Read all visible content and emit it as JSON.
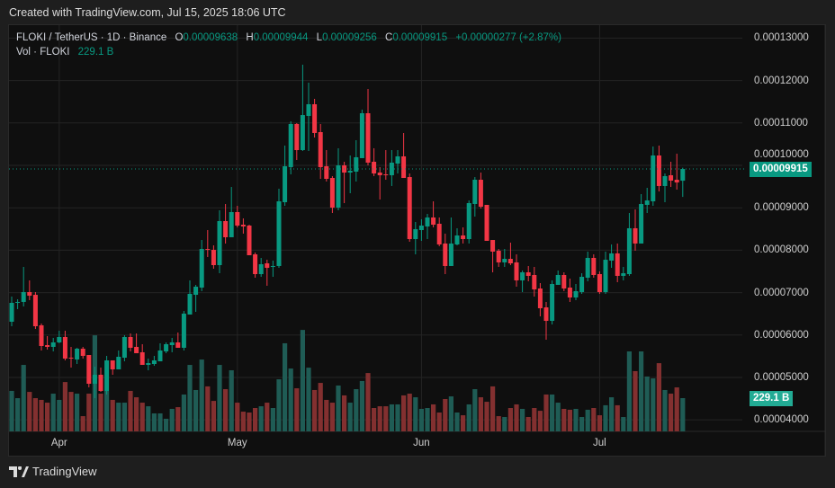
{
  "caption": "Created with TradingView.com, Jul 15, 2025 18:06 UTC",
  "legend": {
    "symbol": "FLOKI / TetherUS · 1D · Binance",
    "o_label": "O",
    "o_value": "0.00009638",
    "h_label": "H",
    "h_value": "0.00009944",
    "l_label": "L",
    "l_value": "0.00009256",
    "c_label": "C",
    "c_value": "0.00009915",
    "change": "+0.00000277 (+2.87%)",
    "vol_label": "Vol · FLOKI",
    "vol_value": "229.1 B"
  },
  "price_tag": "0.00009915",
  "volume_tag": "229.1 B",
  "logo_text": "TradingView",
  "colors": {
    "up": "#089981",
    "down": "#f23645",
    "up_volume": "#1f5c55",
    "down_volume": "#833030",
    "background": "#0f0f0f",
    "grid": "#242424"
  },
  "chart_data": {
    "type": "candlestick",
    "ylim": [
      3.728e-05,
      0.00013263
    ],
    "price_ticks": [
      "0.00013000",
      "0.00012000",
      "0.00011000",
      "0.00010000",
      "0.00009000",
      "0.00008000",
      "0.00007000",
      "0.00006000",
      "0.00005000",
      "0.00004000"
    ],
    "x_ticks": [
      {
        "label": "Apr",
        "date": "2025-04-01"
      },
      {
        "label": "May",
        "date": "2025-05-01"
      },
      {
        "label": "Jun",
        "date": "2025-06-01"
      },
      {
        "label": "Jul",
        "date": "2025-07-01"
      }
    ],
    "last_price": 9.915e-05,
    "grid": true,
    "columns": [
      "date",
      "open",
      "high",
      "low",
      "close",
      "volume_B"
    ],
    "candles": [
      [
        "2025-03-24",
        6.313e-05,
        6.906e-05,
        6.207e-05,
        6.758e-05,
        279
      ],
      [
        "2025-03-25",
        6.758e-05,
        6.843e-05,
        6.61e-05,
        6.78e-05,
        229
      ],
      [
        "2025-03-26",
        6.78e-05,
        7.606e-05,
        6.673e-05,
        7.012e-05,
        458
      ],
      [
        "2025-03-27",
        7.012e-05,
        7.288e-05,
        6.822e-05,
        6.927e-05,
        272
      ],
      [
        "2025-03-28",
        6.948e-05,
        7.012e-05,
        6.143e-05,
        6.207e-05,
        229
      ],
      [
        "2025-03-29",
        6.228e-05,
        6.27e-05,
        5.635e-05,
        5.741e-05,
        217
      ],
      [
        "2025-03-30",
        5.762e-05,
        5.974e-05,
        5.656e-05,
        5.72e-05,
        198
      ],
      [
        "2025-03-31",
        5.72e-05,
        5.932e-05,
        5.614e-05,
        5.826e-05,
        260
      ],
      [
        "2025-04-01",
        5.826e-05,
        6.101e-05,
        5.805e-05,
        5.953e-05,
        217
      ],
      [
        "2025-04-02",
        5.953e-05,
        6.101e-05,
        5.402e-05,
        5.444e-05,
        340
      ],
      [
        "2025-04-03",
        5.465e-05,
        5.72e-05,
        5.232e-05,
        5.444e-05,
        272
      ],
      [
        "2025-04-04",
        5.423e-05,
        5.698e-05,
        5.317e-05,
        5.677e-05,
        260
      ],
      [
        "2025-04-05",
        5.677e-05,
        5.72e-05,
        5.444e-05,
        5.508e-05,
        105
      ],
      [
        "2025-04-06",
        5.529e-05,
        5.529e-05,
        4.766e-05,
        4.851e-05,
        260
      ],
      [
        "2025-04-07",
        4.851e-05,
        5.253e-05,
        4.512e-05,
        5.063e-05,
        662
      ],
      [
        "2025-04-08",
        5.063e-05,
        5.232e-05,
        4.66e-05,
        4.681e-05,
        260
      ],
      [
        "2025-04-09",
        4.681e-05,
        5.508e-05,
        4.596e-05,
        5.402e-05,
        279
      ],
      [
        "2025-04-10",
        5.402e-05,
        5.402e-05,
        5.063e-05,
        5.19e-05,
        217
      ],
      [
        "2025-04-11",
        5.19e-05,
        5.635e-05,
        5.19e-05,
        5.487e-05,
        198
      ],
      [
        "2025-04-12",
        5.465e-05,
        5.995e-05,
        5.38e-05,
        5.953e-05,
        198
      ],
      [
        "2025-04-13",
        5.953e-05,
        6.037e-05,
        5.614e-05,
        5.699e-05,
        279
      ],
      [
        "2025-04-14",
        5.72e-05,
        6.037e-05,
        5.571e-05,
        5.571e-05,
        235
      ],
      [
        "2025-04-15",
        5.593e-05,
        5.783e-05,
        5.296e-05,
        5.296e-05,
        198
      ],
      [
        "2025-04-16",
        5.296e-05,
        5.444e-05,
        5.168e-05,
        5.338e-05,
        173
      ],
      [
        "2025-04-17",
        5.317e-05,
        5.508e-05,
        5.274e-05,
        5.402e-05,
        124
      ],
      [
        "2025-04-18",
        5.38e-05,
        5.804e-05,
        5.38e-05,
        5.635e-05,
        124
      ],
      [
        "2025-04-19",
        5.614e-05,
        5.826e-05,
        5.571e-05,
        5.783e-05,
        87
      ],
      [
        "2025-04-20",
        5.762e-05,
        5.932e-05,
        5.593e-05,
        5.826e-05,
        155
      ],
      [
        "2025-04-21",
        5.826e-05,
        6.059e-05,
        5.699e-05,
        5.699e-05,
        167
      ],
      [
        "2025-04-22",
        5.699e-05,
        6.567e-05,
        5.635e-05,
        6.504e-05,
        254
      ],
      [
        "2025-04-23",
        6.483e-05,
        7.288e-05,
        6.483e-05,
        6.97e-05,
        458
      ],
      [
        "2025-04-24",
        6.948e-05,
        7.182e-05,
        6.546e-05,
        7.139e-05,
        285
      ],
      [
        "2025-04-25",
        7.118e-05,
        8.241e-05,
        7.034e-05,
        8.029e-05,
        495
      ],
      [
        "2025-04-26",
        8.029e-05,
        8.474e-05,
        7.839e-05,
        8.008e-05,
        310
      ],
      [
        "2025-04-27",
        8.008e-05,
        8.114e-05,
        7.563e-05,
        7.648e-05,
        210
      ],
      [
        "2025-04-28",
        7.648e-05,
        8.941e-05,
        7.457e-05,
        8.686e-05,
        458
      ],
      [
        "2025-04-29",
        8.686e-05,
        9.089e-05,
        8.156e-05,
        8.305e-05,
        291
      ],
      [
        "2025-04-30",
        8.305e-05,
        9.491e-05,
        8.305e-05,
        8.898e-05,
        421
      ],
      [
        "2025-05-01",
        8.898e-05,
        9.046e-05,
        8.538e-05,
        8.58e-05,
        198
      ],
      [
        "2025-05-02",
        8.601e-05,
        8.75e-05,
        8.39e-05,
        8.559e-05,
        136
      ],
      [
        "2025-05-03",
        8.58e-05,
        8.601e-05,
        7.881e-05,
        7.881e-05,
        130
      ],
      [
        "2025-05-04",
        7.902e-05,
        7.945e-05,
        7.351e-05,
        7.436e-05,
        161
      ],
      [
        "2025-05-05",
        7.436e-05,
        7.817e-05,
        7.372e-05,
        7.669e-05,
        173
      ],
      [
        "2025-05-06",
        7.69e-05,
        7.775e-05,
        7.161e-05,
        7.584e-05,
        198
      ],
      [
        "2025-05-07",
        7.606e-05,
        7.754e-05,
        7.372e-05,
        7.627e-05,
        161
      ],
      [
        "2025-05-08",
        7.627e-05,
        9.449e-05,
        7.584e-05,
        9.152e-05,
        359
      ],
      [
        "2025-05-09",
        9.131e-05,
        0.00010466,
        9.046e-05,
        9.979e-05,
        607
      ],
      [
        "2025-05-10",
        9.958e-05,
        0.00011038,
        9.788e-05,
        0.00010975,
        433
      ],
      [
        "2025-05-11",
        0.00010975,
        0.00010996,
        0.00010127,
        0.0001036,
        297
      ],
      [
        "2025-05-12",
        0.0001036,
        0.00012373,
        0.00010339,
        0.00011186,
        699
      ],
      [
        "2025-05-13",
        0.00011165,
        0.00011949,
        0.00010339,
        0.00011441,
        439
      ],
      [
        "2025-05-14",
        0.00011441,
        0.00011568,
        0.00010657,
        0.00010763,
        285
      ],
      [
        "2025-05-15",
        0.00010784,
        0.00010975,
        9.682e-05,
        9.958e-05,
        334
      ],
      [
        "2025-05-16",
        9.979e-05,
        0.0001036,
        9.619e-05,
        9.682e-05,
        217
      ],
      [
        "2025-05-17",
        9.703e-05,
        9.746e-05,
        8.877e-05,
        9.004e-05,
        198
      ],
      [
        "2025-05-18",
        9.004e-05,
        0.00010403,
        8.941e-05,
        0.0001,
        316
      ],
      [
        "2025-05-19",
        0.0001,
        0.00010085,
        9.11e-05,
        9.83e-05,
        248
      ],
      [
        "2025-05-20",
        9.83e-05,
        0.00010233,
        9.343e-05,
        9.873e-05,
        198
      ],
      [
        "2025-05-21",
        9.852e-05,
        0.00010593,
        9.619e-05,
        0.00010191,
        291
      ],
      [
        "2025-05-22",
        0.0001017,
        0.00011314,
        0.0001017,
        0.00011229,
        347
      ],
      [
        "2025-05-23",
        0.00011229,
        0.00011801,
        0.0001,
        0.00010064,
        402
      ],
      [
        "2025-05-24",
        0.00010085,
        0.00010403,
        9.746e-05,
        9.809e-05,
        161
      ],
      [
        "2025-05-25",
        9.83e-05,
        9.958e-05,
        9.195e-05,
        9.767e-05,
        173
      ],
      [
        "2025-05-26",
        9.788e-05,
        0.0001036,
        9.661e-05,
        9.767e-05,
        173
      ],
      [
        "2025-05-27",
        9.767e-05,
        0.0001036,
        9.513e-05,
        0.00010064,
        186
      ],
      [
        "2025-05-28",
        0.00010042,
        0.0001036,
        9.809e-05,
        0.00010212,
        186
      ],
      [
        "2025-05-29",
        0.00010212,
        0.00010763,
        9.703e-05,
        9.703e-05,
        248
      ],
      [
        "2025-05-30",
        9.724e-05,
        9.809e-05,
        8.199e-05,
        8.262e-05,
        260
      ],
      [
        "2025-05-31",
        8.262e-05,
        8.665e-05,
        7.902e-05,
        8.496e-05,
        235
      ],
      [
        "2025-06-01",
        8.474e-05,
        8.729e-05,
        8.22e-05,
        8.58e-05,
        155
      ],
      [
        "2025-06-02",
        8.559e-05,
        8.856e-05,
        8.262e-05,
        8.771e-05,
        161
      ],
      [
        "2025-06-03",
        8.771e-05,
        9.152e-05,
        8.538e-05,
        8.601e-05,
        186
      ],
      [
        "2025-06-04",
        8.623e-05,
        8.771e-05,
        8.093e-05,
        8.135e-05,
        130
      ],
      [
        "2025-06-05",
        8.157e-05,
        8.39e-05,
        7.436e-05,
        7.627e-05,
        223
      ],
      [
        "2025-06-06",
        7.627e-05,
        8.771e-05,
        7.627e-05,
        8.157e-05,
        241
      ],
      [
        "2025-06-07",
        8.135e-05,
        8.517e-05,
        8.114e-05,
        8.347e-05,
        130
      ],
      [
        "2025-06-08",
        8.347e-05,
        8.538e-05,
        8.157e-05,
        8.262e-05,
        111
      ],
      [
        "2025-06-09",
        8.262e-05,
        9.173e-05,
        8.157e-05,
        9.11e-05,
        186
      ],
      [
        "2025-06-10",
        9.089e-05,
        9.724e-05,
        8.792e-05,
        9.661e-05,
        291
      ],
      [
        "2025-06-11",
        9.661e-05,
        9.83e-05,
        8.983e-05,
        9.025e-05,
        235
      ],
      [
        "2025-06-12",
        9.068e-05,
        9.068e-05,
        8.22e-05,
        8.22e-05,
        204
      ],
      [
        "2025-06-13",
        8.241e-05,
        8.241e-05,
        7.478e-05,
        7.966e-05,
        310
      ],
      [
        "2025-06-14",
        7.987e-05,
        8.029e-05,
        7.606e-05,
        7.712e-05,
        105
      ],
      [
        "2025-06-15",
        7.712e-05,
        8.029e-05,
        7.606e-05,
        7.796e-05,
        99
      ],
      [
        "2025-06-16",
        7.796e-05,
        8.178e-05,
        7.648e-05,
        7.69e-05,
        161
      ],
      [
        "2025-06-17",
        7.712e-05,
        7.902e-05,
        7.139e-05,
        7.288e-05,
        186
      ],
      [
        "2025-06-18",
        7.288e-05,
        7.521e-05,
        7.012e-05,
        7.478e-05,
        155
      ],
      [
        "2025-06-19",
        7.478e-05,
        7.627e-05,
        7.266e-05,
        7.394e-05,
        99
      ],
      [
        "2025-06-20",
        7.415e-05,
        7.606e-05,
        6.906e-05,
        7.076e-05,
        161
      ],
      [
        "2025-06-21",
        7.097e-05,
        7.224e-05,
        6.44e-05,
        6.631e-05,
        142
      ],
      [
        "2025-06-22",
        6.652e-05,
        6.779e-05,
        5.889e-05,
        6.334e-05,
        254
      ],
      [
        "2025-06-23",
        6.334e-05,
        7.288e-05,
        6.249e-05,
        7.203e-05,
        254
      ],
      [
        "2025-06-24",
        7.182e-05,
        7.521e-05,
        7.182e-05,
        7.415e-05,
        198
      ],
      [
        "2025-06-25",
        7.415e-05,
        7.478e-05,
        7.034e-05,
        7.097e-05,
        155
      ],
      [
        "2025-06-26",
        7.118e-05,
        7.33e-05,
        6.779e-05,
        6.885e-05,
        149
      ],
      [
        "2025-06-27",
        6.885e-05,
        7.203e-05,
        6.822e-05,
        7.034e-05,
        155
      ],
      [
        "2025-06-28",
        7.012e-05,
        7.457e-05,
        6.97e-05,
        7.372e-05,
        99
      ],
      [
        "2025-06-29",
        7.351e-05,
        7.966e-05,
        7.266e-05,
        7.818e-05,
        149
      ],
      [
        "2025-06-30",
        7.818e-05,
        7.902e-05,
        7.351e-05,
        7.415e-05,
        161
      ],
      [
        "2025-07-01",
        7.436e-05,
        7.5e-05,
        6.97e-05,
        7.012e-05,
        111
      ],
      [
        "2025-07-02",
        7.012e-05,
        7.966e-05,
        6.97e-05,
        7.775e-05,
        180
      ],
      [
        "2025-07-03",
        7.754e-05,
        8.135e-05,
        7.584e-05,
        7.924e-05,
        235
      ],
      [
        "2025-07-04",
        7.924e-05,
        8.157e-05,
        7.245e-05,
        7.394e-05,
        180
      ],
      [
        "2025-07-05",
        7.394e-05,
        7.606e-05,
        7.288e-05,
        7.457e-05,
        99
      ],
      [
        "2025-07-06",
        7.436e-05,
        8.877e-05,
        7.394e-05,
        8.517e-05,
        551
      ],
      [
        "2025-07-07",
        8.517e-05,
        8.962e-05,
        7.987e-05,
        8.157e-05,
        415
      ],
      [
        "2025-07-08",
        8.157e-05,
        9.322e-05,
        8.157e-05,
        9.089e-05,
        551
      ],
      [
        "2025-07-09",
        9.068e-05,
        9.47e-05,
        8.877e-05,
        9.173e-05,
        378
      ],
      [
        "2025-07-10",
        9.152e-05,
        0.00010445,
        9.046e-05,
        0.00010233,
        365
      ],
      [
        "2025-07-11",
        0.00010233,
        0.00010466,
        9.385e-05,
        9.513e-05,
        470
      ],
      [
        "2025-07-12",
        9.513e-05,
        9.809e-05,
        9.131e-05,
        9.746e-05,
        285
      ],
      [
        "2025-07-13",
        9.767e-05,
        0.00010085,
        9.491e-05,
        9.64e-05,
        260
      ],
      [
        "2025-07-14",
        9.661e-05,
        0.00010275,
        9.428e-05,
        9.597e-05,
        303
      ],
      [
        "2025-07-15",
        9.638e-05,
        9.944e-05,
        9.256e-05,
        9.915e-05,
        229.1
      ]
    ]
  }
}
